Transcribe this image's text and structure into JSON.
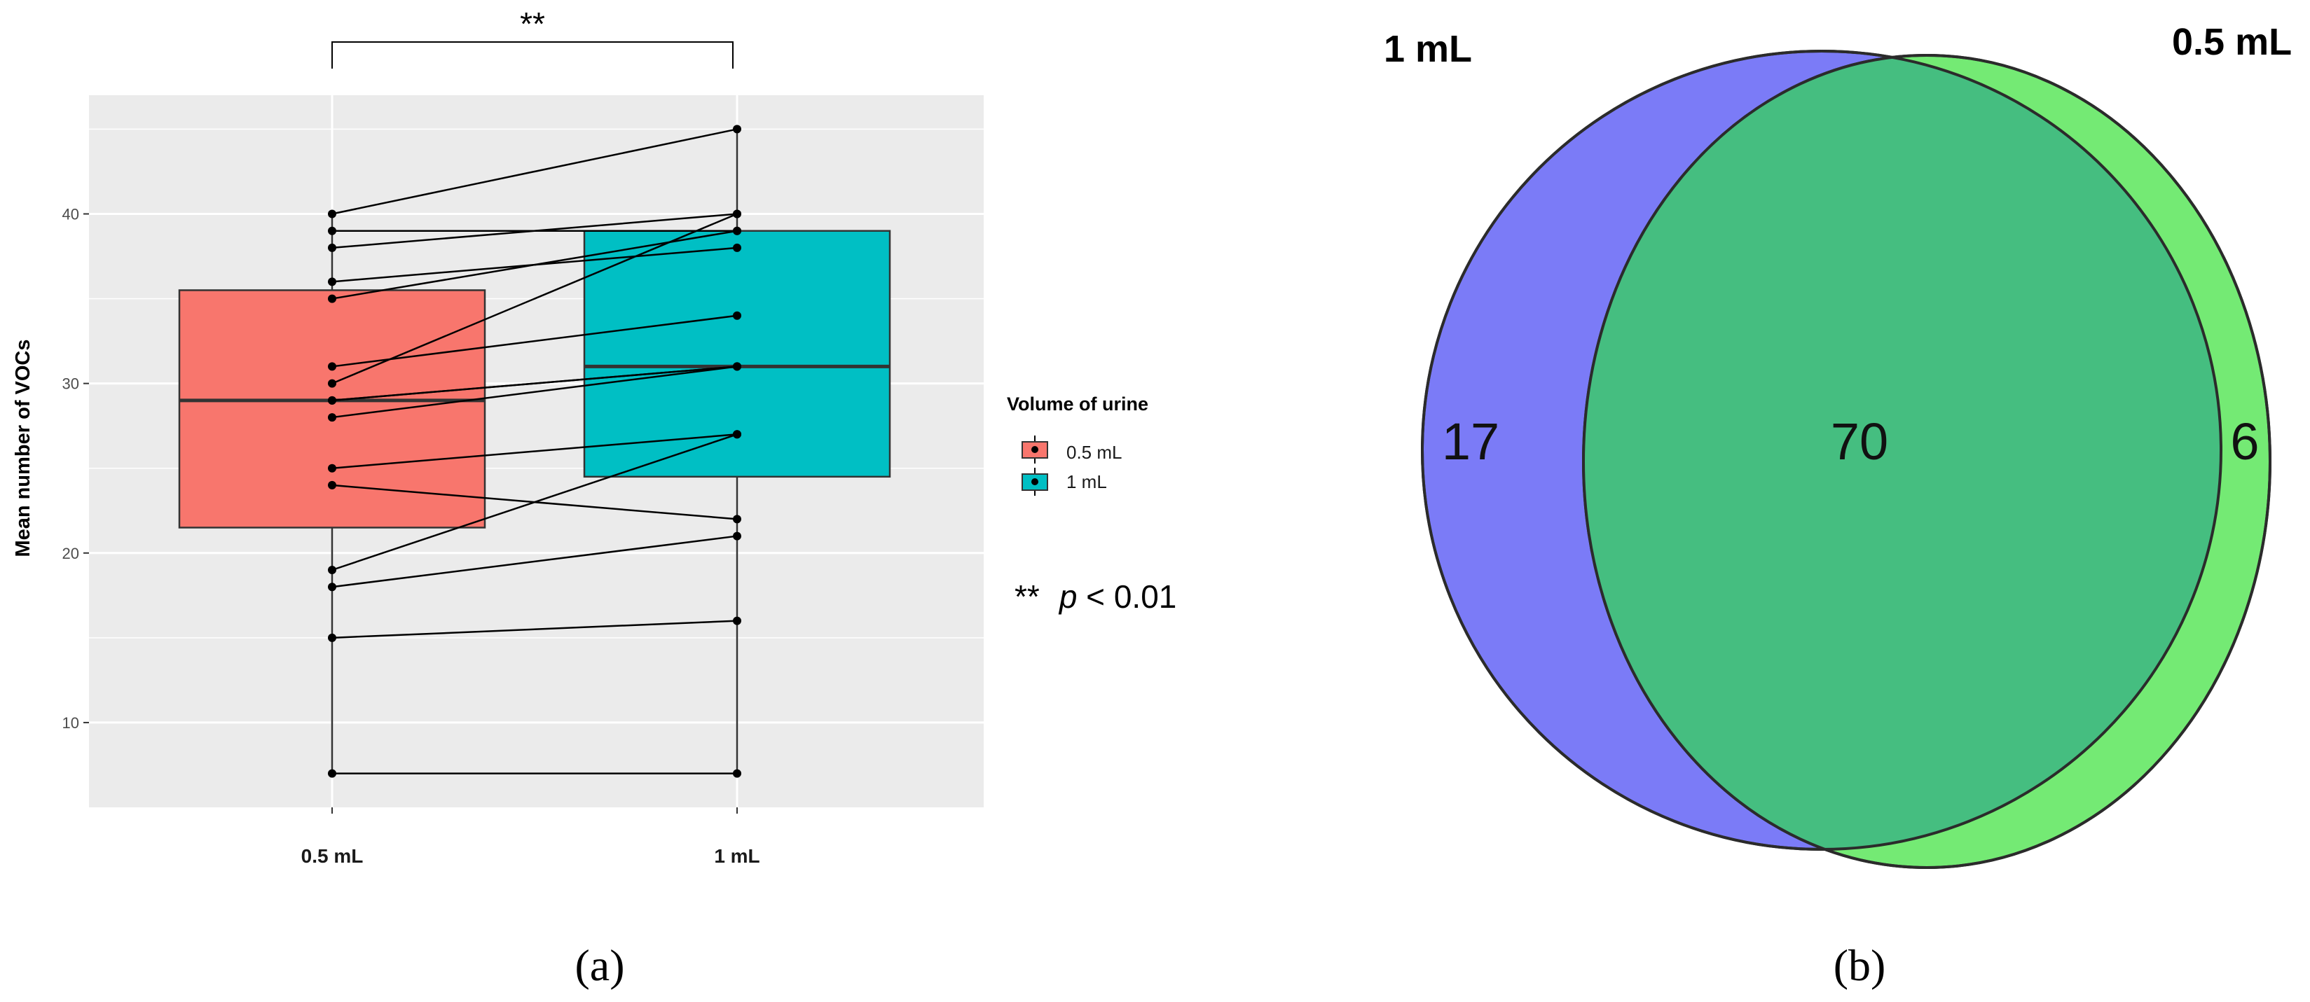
{
  "panel_a": {
    "label": "(a)",
    "significance": "**",
    "p_note_stars": "**",
    "p_note_p": "p",
    "p_note_rest": " < 0.01",
    "legend": {
      "title": "Volume of urine",
      "items": [
        {
          "label": "0.5 mL",
          "color": "#F8766D"
        },
        {
          "label": "1 mL",
          "color": "#00BFC4"
        }
      ]
    }
  },
  "panel_b": {
    "label": "(b)",
    "left_set": "1 mL",
    "right_set": "0.5 mL",
    "only_left": "17",
    "intersection": "70",
    "only_right": "6",
    "colors": {
      "left": "#7B7BF7",
      "right": "#74EA74",
      "overlap": "#45BE80"
    }
  },
  "chart_data": [
    {
      "type": "box",
      "title": "",
      "xlabel": "",
      "ylabel": "Mean number of VOCs",
      "categories": [
        "0.5 mL",
        "1 mL"
      ],
      "ylim": [
        5,
        47
      ],
      "yticks": [
        10,
        20,
        30,
        40
      ],
      "yticks_minor": [
        15,
        25,
        35,
        45
      ],
      "grid": true,
      "background": "#EBEBEB",
      "legend_position": "right",
      "boxes": [
        {
          "name": "0.5 mL",
          "min": 7,
          "q1": 21.5,
          "median": 29,
          "q3": 35.5,
          "max": 40,
          "color": "#F8766D"
        },
        {
          "name": "1 mL",
          "min": 7,
          "q1": 24.5,
          "median": 31,
          "q3": 39,
          "max": 45,
          "color": "#00BFC4"
        }
      ],
      "paired_points": [
        [
          40,
          45
        ],
        [
          39,
          39
        ],
        [
          38,
          40
        ],
        [
          36,
          38
        ],
        [
          35,
          39
        ],
        [
          31,
          34
        ],
        [
          30,
          40
        ],
        [
          29,
          31
        ],
        [
          29,
          31
        ],
        [
          28,
          31
        ],
        [
          25,
          27
        ],
        [
          24,
          22
        ],
        [
          19,
          27
        ],
        [
          18,
          21
        ],
        [
          15,
          16
        ],
        [
          7,
          7
        ]
      ]
    },
    {
      "type": "venn",
      "sets": [
        {
          "name": "1 mL",
          "size": 87,
          "color": "#7B7BF7"
        },
        {
          "name": "0.5 mL",
          "size": 76,
          "color": "#74EA74"
        }
      ],
      "regions": {
        "1 mL only": 17,
        "both": 70,
        "0.5 mL only": 6
      }
    }
  ]
}
